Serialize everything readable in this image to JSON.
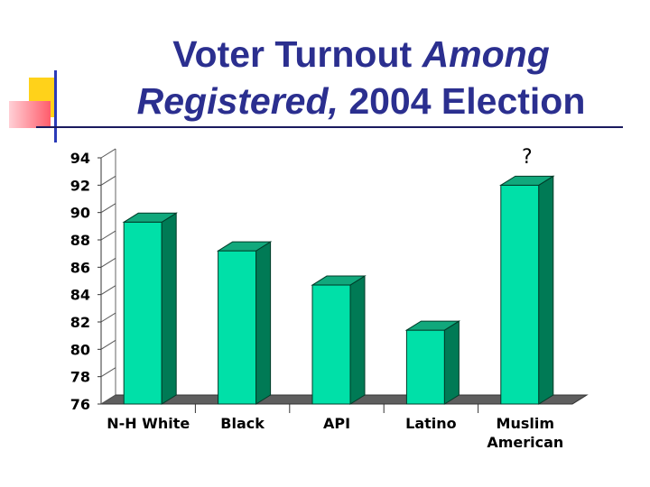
{
  "slide": {
    "title_line1_plain": "Voter Turnout ",
    "title_line1_italic": "Among",
    "title_line2_italic": "Registered,",
    "title_line2_plain": " 2004 Election"
  },
  "colors": {
    "title": "#2b2f8f",
    "bar_front": "#00e0a8",
    "bar_side": "#007a55",
    "bar_top": "#11a87c",
    "floor": "#5e5e5e",
    "deco_yellow": "#ffd21a",
    "deco_red": "#ff5c6b",
    "deco_blue": "#2a3ab8"
  },
  "chart_data": {
    "type": "bar",
    "title": "Voter Turnout Among Registered, 2004 Election",
    "categories": [
      [
        "N-H White"
      ],
      [
        "Black"
      ],
      [
        "API"
      ],
      [
        "Latino"
      ],
      [
        "Muslim",
        "American"
      ]
    ],
    "values": [
      89.3,
      87.2,
      84.7,
      81.4,
      92.0
    ],
    "ylim": [
      76,
      94
    ],
    "yticks": [
      76,
      78,
      80,
      82,
      84,
      86,
      88,
      90,
      92,
      94
    ],
    "grid": false,
    "legend": "none",
    "annotation": "?"
  }
}
